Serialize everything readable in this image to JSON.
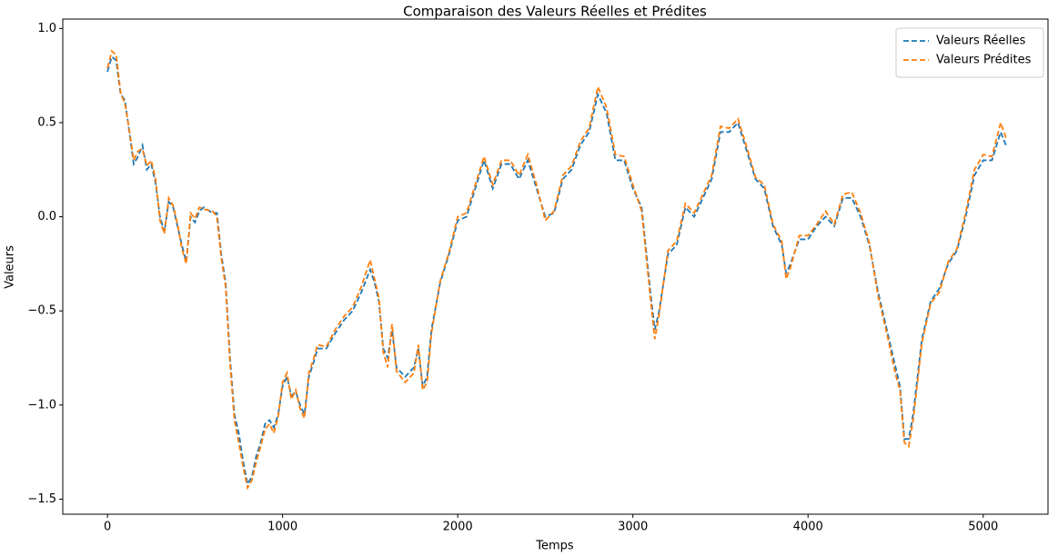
{
  "chart_data": {
    "type": "line",
    "title": "Comparaison des Valeurs Réelles et Prédites",
    "xlabel": "Temps",
    "ylabel": "Valeurs",
    "x": [
      0,
      25,
      50,
      75,
      100,
      125,
      150,
      175,
      200,
      225,
      250,
      275,
      300,
      325,
      350,
      375,
      400,
      425,
      450,
      475,
      500,
      525,
      550,
      600,
      625,
      650,
      675,
      700,
      725,
      750,
      775,
      800,
      825,
      850,
      875,
      900,
      925,
      950,
      975,
      1000,
      1025,
      1050,
      1075,
      1100,
      1125,
      1150,
      1175,
      1200,
      1250,
      1300,
      1350,
      1400,
      1450,
      1500,
      1525,
      1550,
      1575,
      1600,
      1625,
      1650,
      1700,
      1750,
      1775,
      1800,
      1825,
      1850,
      1900,
      1950,
      2000,
      2050,
      2100,
      2150,
      2200,
      2250,
      2300,
      2350,
      2400,
      2450,
      2500,
      2550,
      2600,
      2650,
      2700,
      2750,
      2800,
      2850,
      2900,
      2950,
      3000,
      3050,
      3100,
      3125,
      3150,
      3200,
      3250,
      3300,
      3350,
      3400,
      3450,
      3500,
      3550,
      3600,
      3650,
      3700,
      3750,
      3800,
      3850,
      3875,
      3900,
      3950,
      4000,
      4050,
      4100,
      4150,
      4200,
      4250,
      4300,
      4350,
      4400,
      4450,
      4500,
      4525,
      4550,
      4575,
      4600,
      4650,
      4700,
      4750,
      4800,
      4850,
      4900,
      4950,
      5000,
      5050,
      5100,
      5130
    ],
    "series": [
      {
        "name": "Valeurs Réelles",
        "color": "#1f77b4",
        "dashed": true,
        "values": [
          0.77,
          0.85,
          0.83,
          0.65,
          0.62,
          0.45,
          0.28,
          0.32,
          0.38,
          0.25,
          0.28,
          0.18,
          0.0,
          -0.08,
          0.08,
          0.05,
          -0.05,
          -0.15,
          -0.24,
          0.0,
          -0.03,
          0.03,
          0.05,
          0.02,
          0.02,
          -0.2,
          -0.35,
          -0.75,
          -1.05,
          -1.15,
          -1.3,
          -1.42,
          -1.38,
          -1.27,
          -1.2,
          -1.1,
          -1.08,
          -1.12,
          -1.05,
          -0.9,
          -0.85,
          -0.95,
          -0.93,
          -1.0,
          -1.05,
          -0.85,
          -0.78,
          -0.7,
          -0.7,
          -0.62,
          -0.55,
          -0.5,
          -0.4,
          -0.28,
          -0.35,
          -0.45,
          -0.7,
          -0.75,
          -0.6,
          -0.8,
          -0.85,
          -0.8,
          -0.7,
          -0.9,
          -0.85,
          -0.6,
          -0.35,
          -0.2,
          -0.02,
          0.0,
          0.15,
          0.3,
          0.15,
          0.28,
          0.28,
          0.2,
          0.3,
          0.15,
          0.0,
          0.02,
          0.2,
          0.25,
          0.38,
          0.45,
          0.65,
          0.55,
          0.3,
          0.3,
          0.15,
          0.05,
          -0.4,
          -0.6,
          -0.5,
          -0.2,
          -0.15,
          0.05,
          0.0,
          0.1,
          0.2,
          0.45,
          0.45,
          0.5,
          0.35,
          0.2,
          0.15,
          -0.05,
          -0.15,
          -0.3,
          -0.25,
          -0.12,
          -0.12,
          -0.05,
          0.0,
          -0.05,
          0.1,
          0.1,
          0.0,
          -0.15,
          -0.4,
          -0.6,
          -0.8,
          -0.9,
          -1.18,
          -1.18,
          -1.05,
          -0.65,
          -0.45,
          -0.38,
          -0.25,
          -0.18,
          0.0,
          0.22,
          0.3,
          0.3,
          0.45,
          0.38
        ]
      },
      {
        "name": "Valeurs Prédites",
        "color": "#ff7f0e",
        "dashed": true,
        "values": [
          0.79,
          0.88,
          0.86,
          0.66,
          0.6,
          0.46,
          0.3,
          0.35,
          0.36,
          0.27,
          0.3,
          0.2,
          -0.02,
          -0.09,
          0.1,
          0.06,
          -0.04,
          -0.17,
          -0.25,
          0.02,
          -0.01,
          0.05,
          0.04,
          0.03,
          0.0,
          -0.22,
          -0.37,
          -0.78,
          -1.08,
          -1.2,
          -1.33,
          -1.44,
          -1.4,
          -1.3,
          -1.22,
          -1.13,
          -1.1,
          -1.15,
          -1.06,
          -0.88,
          -0.83,
          -0.97,
          -0.92,
          -1.02,
          -1.07,
          -0.83,
          -0.76,
          -0.68,
          -0.69,
          -0.6,
          -0.53,
          -0.48,
          -0.37,
          -0.23,
          -0.33,
          -0.43,
          -0.72,
          -0.8,
          -0.57,
          -0.82,
          -0.88,
          -0.83,
          -0.68,
          -0.92,
          -0.88,
          -0.62,
          -0.34,
          -0.19,
          0.0,
          0.02,
          0.17,
          0.32,
          0.17,
          0.3,
          0.3,
          0.22,
          0.33,
          0.17,
          -0.02,
          0.03,
          0.22,
          0.27,
          0.4,
          0.47,
          0.69,
          0.58,
          0.33,
          0.32,
          0.17,
          0.03,
          -0.43,
          -0.65,
          -0.52,
          -0.18,
          -0.13,
          0.07,
          0.02,
          0.12,
          0.22,
          0.48,
          0.47,
          0.52,
          0.37,
          0.21,
          0.17,
          -0.04,
          -0.13,
          -0.33,
          -0.27,
          -0.1,
          -0.1,
          -0.04,
          0.03,
          -0.04,
          0.12,
          0.13,
          0.02,
          -0.14,
          -0.42,
          -0.62,
          -0.84,
          -0.92,
          -1.2,
          -1.22,
          -1.08,
          -0.67,
          -0.46,
          -0.4,
          -0.24,
          -0.17,
          0.02,
          0.25,
          0.33,
          0.32,
          0.5,
          0.42
        ]
      }
    ],
    "xlim": [
      -255,
      5370
    ],
    "ylim": [
      -1.58,
      1.05
    ],
    "xticks": [
      0,
      1000,
      2000,
      3000,
      4000,
      5000
    ],
    "yticks": [
      {
        "value": -1.5,
        "label": "−1.5"
      },
      {
        "value": -1.0,
        "label": "−1.0"
      },
      {
        "value": -0.5,
        "label": "−0.5"
      },
      {
        "value": 0.0,
        "label": "0.0"
      },
      {
        "value": 0.5,
        "label": "0.5"
      },
      {
        "value": 1.0,
        "label": "1.0"
      }
    ],
    "grid": false,
    "legend": "upper right"
  }
}
